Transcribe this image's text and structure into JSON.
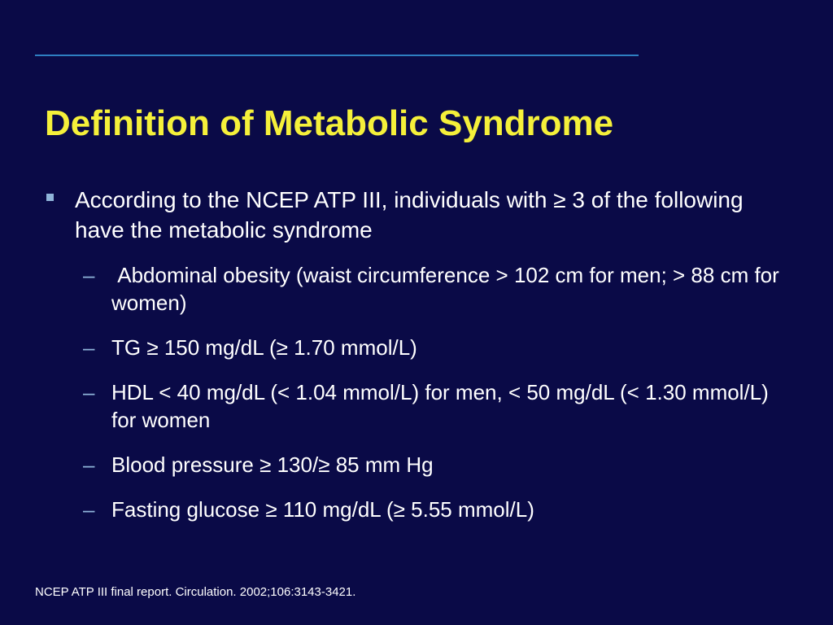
{
  "slide": {
    "title": "Definition of Metabolic Syndrome",
    "main_bullet": "According to the NCEP ATP III, individuals with ≥ 3 of the following have the metabolic syndrome",
    "sub_bullets": [
      " Abdominal obesity (waist circumference > 102 cm for men; > 88 cm for women)",
      "TG ≥ 150 mg/dL (≥ 1.70 mmol/L)",
      "HDL < 40 mg/dL (< 1.04 mmol/L) for men, < 50 mg/dL (< 1.30 mmol/L) for women",
      "Blood pressure ≥ 130/≥ 85 mm Hg",
      "Fasting glucose ≥ 110 mg/dL (≥ 5.55 mmol/L)"
    ],
    "dash_glyph": "–",
    "footnote": "NCEP ATP III final report. Circulation. 2002;106:3143-3421."
  },
  "colors": {
    "background": "#0a0a47",
    "title": "#f5f03a",
    "text": "#ffffff",
    "rule": "#2e7fc2",
    "bullet_marker": "#8fb4d9"
  },
  "icons": {
    "main_bullet_marker": "square-bullet-icon"
  }
}
